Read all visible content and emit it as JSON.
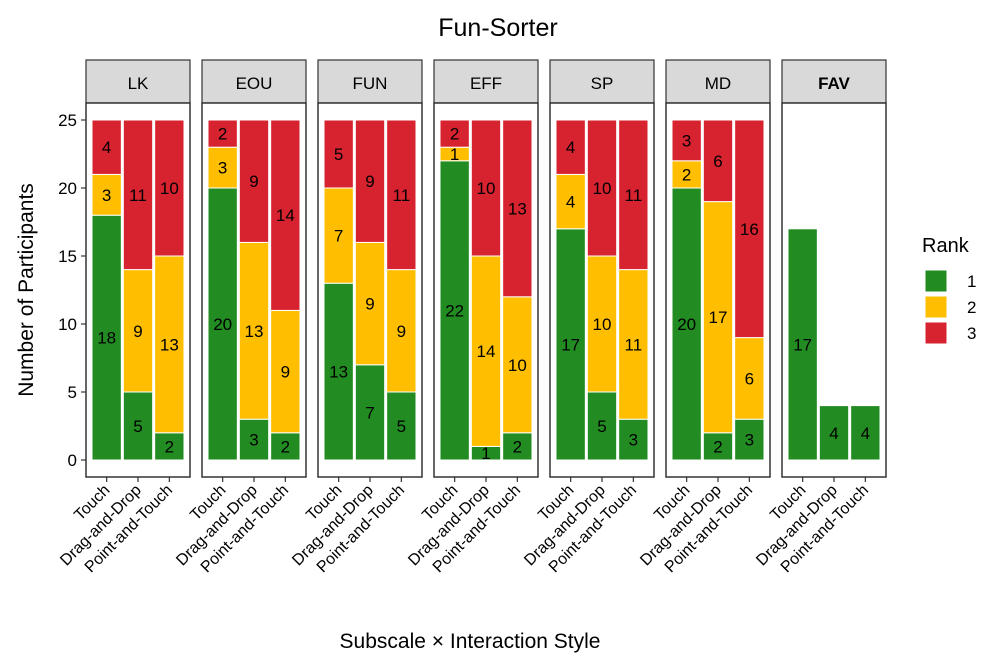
{
  "chart_data": {
    "type": "bar",
    "stacked": true,
    "title": "Fun-Sorter",
    "xlabel": "Subscale × Interaction Style",
    "ylabel": "Number of Participants",
    "legend_title": "Rank",
    "ylim": [
      -1.25,
      26.25
    ],
    "yticks": [
      0,
      5,
      10,
      15,
      20,
      25
    ],
    "categories": [
      "Touch",
      "Drag-and-Drop",
      "Point-and-Touch"
    ],
    "series": [
      {
        "name": "1",
        "color": "#228b22"
      },
      {
        "name": "2",
        "color": "#ffbf00"
      },
      {
        "name": "3",
        "color": "#d7222f"
      }
    ],
    "facets": [
      {
        "name": "LK",
        "bold": false,
        "series": [
          {
            "values": [
              18,
              5,
              2
            ]
          },
          {
            "values": [
              3,
              9,
              13
            ]
          },
          {
            "values": [
              4,
              11,
              10
            ]
          }
        ]
      },
      {
        "name": "EOU",
        "bold": false,
        "series": [
          {
            "values": [
              20,
              3,
              2
            ]
          },
          {
            "values": [
              3,
              13,
              9
            ]
          },
          {
            "values": [
              2,
              9,
              14
            ]
          }
        ]
      },
      {
        "name": "FUN",
        "bold": false,
        "series": [
          {
            "values": [
              13,
              7,
              5
            ]
          },
          {
            "values": [
              7,
              9,
              9
            ]
          },
          {
            "values": [
              5,
              9,
              11
            ]
          }
        ]
      },
      {
        "name": "EFF",
        "bold": false,
        "series": [
          {
            "values": [
              22,
              1,
              2
            ]
          },
          {
            "values": [
              1,
              14,
              10
            ]
          },
          {
            "values": [
              2,
              10,
              13
            ]
          }
        ]
      },
      {
        "name": "SP",
        "bold": false,
        "series": [
          {
            "values": [
              17,
              5,
              3
            ]
          },
          {
            "values": [
              4,
              10,
              11
            ]
          },
          {
            "values": [
              4,
              10,
              11
            ]
          }
        ]
      },
      {
        "name": "MD",
        "bold": false,
        "series": [
          {
            "values": [
              20,
              2,
              3
            ]
          },
          {
            "values": [
              2,
              17,
              6
            ]
          },
          {
            "values": [
              3,
              6,
              16
            ]
          }
        ]
      },
      {
        "name": "FAV",
        "bold": true,
        "series": [
          {
            "values": [
              17,
              4,
              4
            ]
          }
        ]
      }
    ]
  }
}
